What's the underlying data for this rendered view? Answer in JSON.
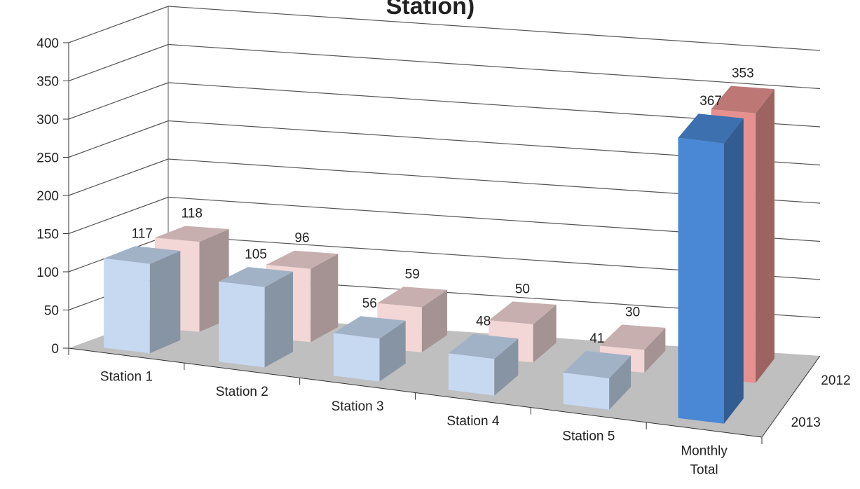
{
  "chart_data": {
    "type": "bar",
    "title": "Station)",
    "categories": [
      "Station 1",
      "Station 2",
      "Station 3",
      "Station 4",
      "Station 5",
      "Monthly Total"
    ],
    "category_lines": [
      [
        "Station 1"
      ],
      [
        "Station 2"
      ],
      [
        "Station 3"
      ],
      [
        "Station 4"
      ],
      [
        "Station 5"
      ],
      [
        "Monthly",
        "Total"
      ]
    ],
    "series": [
      {
        "name": "2012",
        "values": [
          118,
          96,
          59,
          50,
          30,
          353
        ]
      },
      {
        "name": "2013",
        "values": [
          117,
          105,
          56,
          48,
          41,
          367
        ]
      }
    ],
    "ylim": [
      0,
      400
    ],
    "yticks": [
      0,
      50,
      100,
      150,
      200,
      250,
      300,
      350,
      400
    ],
    "grid": true,
    "style": "3d-column",
    "colors": {
      "2012": "#f3d6d6",
      "2013": "#c6d9f1",
      "2012_total": "#e6918f",
      "2013_total": "#4a88d6",
      "floor": "#bfbfbf",
      "gridline": "#555555"
    }
  }
}
